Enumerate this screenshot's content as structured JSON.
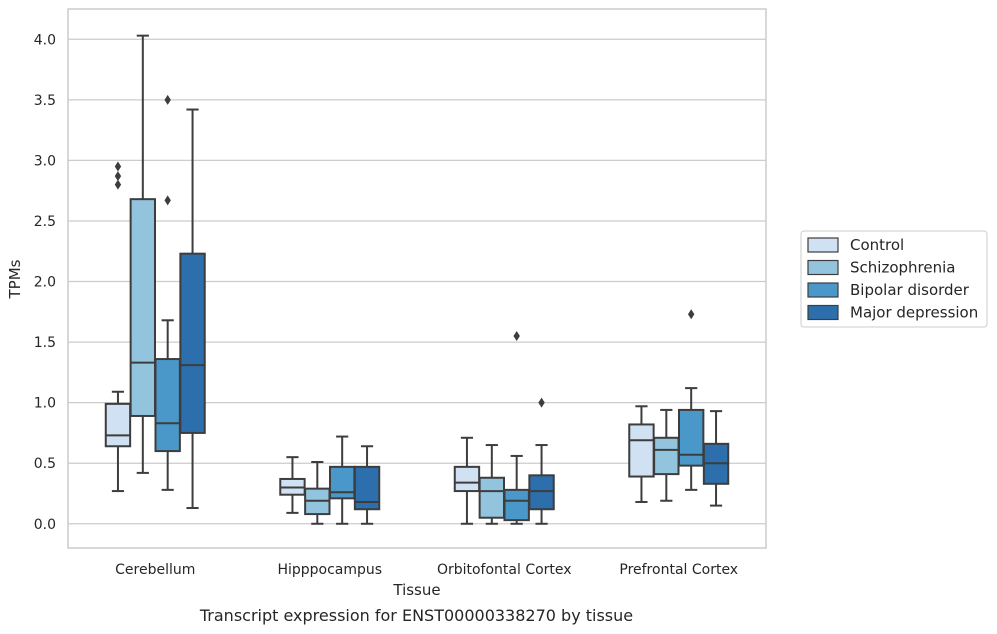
{
  "caption": "Transcript expression for ENST00000338270 by tissue",
  "chart_data": {
    "type": "boxplot",
    "xlabel": "Tissue",
    "ylabel": "TPMs",
    "ylim": [
      -0.2,
      4.25
    ],
    "yticks": [
      "0.0",
      "0.5",
      "1.0",
      "1.5",
      "2.0",
      "2.5",
      "3.0",
      "3.5",
      "4.0"
    ],
    "grid": true,
    "legend_position": "right",
    "categories": [
      "Cerebellum",
      "Hipppocampus",
      "Orbitofontal Cortex",
      "Prefrontal Cortex"
    ],
    "series": [
      {
        "name": "Control",
        "color": "#cfe1f2",
        "boxes": [
          {
            "whislo": 0.27,
            "q1": 0.64,
            "med": 0.73,
            "q3": 0.99,
            "whishi": 1.09,
            "fliers": [
              2.8,
              2.87,
              2.95
            ]
          },
          {
            "whislo": 0.09,
            "q1": 0.24,
            "med": 0.3,
            "q3": 0.37,
            "whishi": 0.55,
            "fliers": []
          },
          {
            "whislo": 0.0,
            "q1": 0.27,
            "med": 0.34,
            "q3": 0.47,
            "whishi": 0.71,
            "fliers": []
          },
          {
            "whislo": 0.18,
            "q1": 0.39,
            "med": 0.69,
            "q3": 0.82,
            "whishi": 0.97,
            "fliers": []
          }
        ]
      },
      {
        "name": "Schizophrenia",
        "color": "#93c4de",
        "boxes": [
          {
            "whislo": 0.42,
            "q1": 0.89,
            "med": 1.33,
            "q3": 2.68,
            "whishi": 4.03,
            "fliers": []
          },
          {
            "whislo": 0.0,
            "q1": 0.08,
            "med": 0.19,
            "q3": 0.29,
            "whishi": 0.51,
            "fliers": []
          },
          {
            "whislo": 0.0,
            "q1": 0.05,
            "med": 0.27,
            "q3": 0.38,
            "whishi": 0.65,
            "fliers": []
          },
          {
            "whislo": 0.19,
            "q1": 0.41,
            "med": 0.61,
            "q3": 0.71,
            "whishi": 0.94,
            "fliers": []
          }
        ]
      },
      {
        "name": "Bipolar disorder",
        "color": "#4a98c9",
        "boxes": [
          {
            "whislo": 0.28,
            "q1": 0.6,
            "med": 0.83,
            "q3": 1.36,
            "whishi": 1.68,
            "fliers": [
              2.67,
              3.5
            ]
          },
          {
            "whislo": 0.0,
            "q1": 0.21,
            "med": 0.26,
            "q3": 0.47,
            "whishi": 0.72,
            "fliers": []
          },
          {
            "whislo": 0.0,
            "q1": 0.03,
            "med": 0.19,
            "q3": 0.28,
            "whishi": 0.56,
            "fliers": [
              1.55
            ]
          },
          {
            "whislo": 0.28,
            "q1": 0.48,
            "med": 0.57,
            "q3": 0.94,
            "whishi": 1.12,
            "fliers": [
              1.73
            ]
          }
        ]
      },
      {
        "name": "Major depression",
        "color": "#2d6ead",
        "boxes": [
          {
            "whislo": 0.13,
            "q1": 0.75,
            "med": 1.31,
            "q3": 2.23,
            "whishi": 3.42,
            "fliers": []
          },
          {
            "whislo": 0.0,
            "q1": 0.12,
            "med": 0.18,
            "q3": 0.47,
            "whishi": 0.64,
            "fliers": []
          },
          {
            "whislo": 0.0,
            "q1": 0.12,
            "med": 0.27,
            "q3": 0.4,
            "whishi": 0.65,
            "fliers": [
              1.0
            ]
          },
          {
            "whislo": 0.15,
            "q1": 0.33,
            "med": 0.5,
            "q3": 0.66,
            "whishi": 0.93,
            "fliers": []
          }
        ]
      }
    ]
  }
}
